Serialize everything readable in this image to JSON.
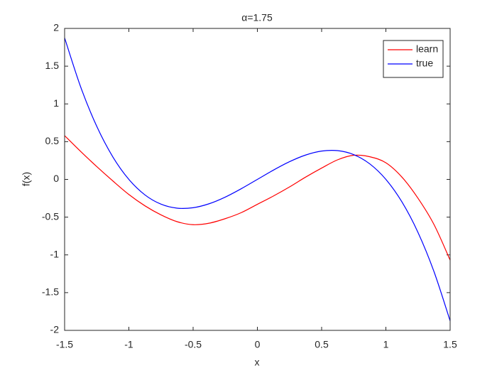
{
  "chart_data": {
    "type": "line",
    "title": "α=1.75",
    "xlabel": "x",
    "ylabel": "f(x)",
    "x": [
      -1.5,
      -1.375,
      -1.25,
      -1.125,
      -1,
      -0.875,
      -0.75,
      -0.625,
      -0.5,
      -0.375,
      -0.25,
      -0.125,
      0,
      0.125,
      0.25,
      0.375,
      0.5,
      0.625,
      0.75,
      0.875,
      1,
      1.125,
      1.25,
      1.375,
      1.5
    ],
    "series": [
      {
        "name": "learn",
        "color": "#ff0000",
        "values": [
          0.58,
          0.37,
          0.17,
          -0.02,
          -0.2,
          -0.35,
          -0.47,
          -0.56,
          -0.6,
          -0.58,
          -0.52,
          -0.44,
          -0.33,
          -0.22,
          -0.1,
          0.03,
          0.15,
          0.26,
          0.32,
          0.3,
          0.22,
          0.03,
          -0.25,
          -0.6,
          -1.07
        ]
      },
      {
        "name": "true",
        "color": "#0000ff",
        "values": [
          1.875,
          1.2246,
          0.7031,
          0.2988,
          0,
          -0.2051,
          -0.3281,
          -0.3809,
          -0.375,
          -0.3223,
          -0.2344,
          -0.123,
          0,
          0.123,
          0.2344,
          0.3223,
          0.375,
          0.3809,
          0.3281,
          0.2051,
          0,
          -0.2988,
          -0.7031,
          -1.2246,
          -1.875
        ]
      }
    ],
    "xlim": [
      -1.5,
      1.5
    ],
    "xticks": [
      -1.5,
      -1,
      -0.5,
      0,
      0.5,
      1,
      1.5
    ],
    "ylim": [
      -2,
      2
    ],
    "yticks": [
      -2,
      -1.5,
      -1,
      -0.5,
      0,
      0.5,
      1,
      1.5,
      2
    ],
    "grid": false,
    "legend": "top-right"
  }
}
